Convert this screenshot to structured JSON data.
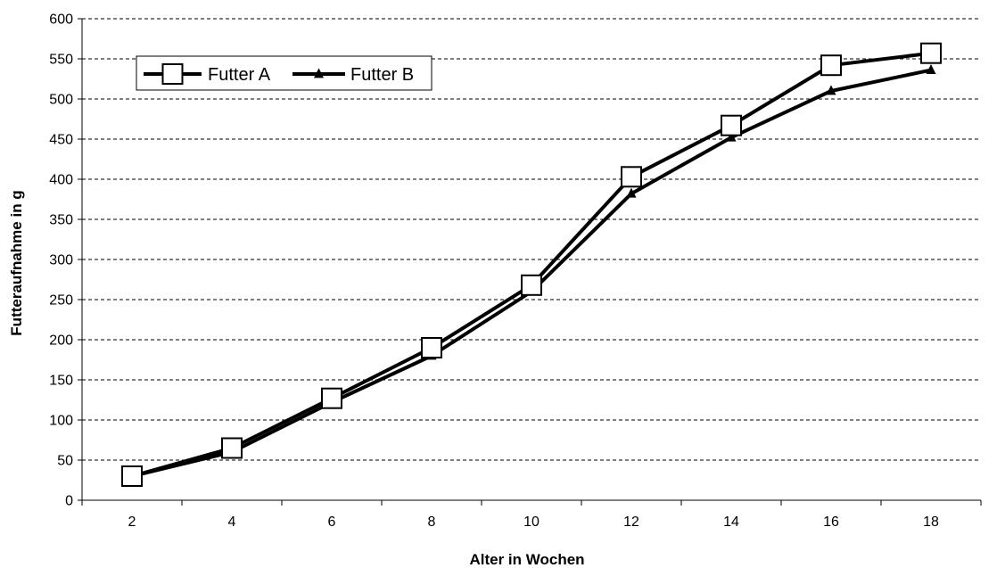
{
  "chart_data": {
    "type": "line",
    "title": "",
    "xlabel": "Alter in Wochen",
    "ylabel": "Futteraufnahme in g",
    "categories": [
      "2",
      "4",
      "6",
      "8",
      "10",
      "12",
      "14",
      "16",
      "18"
    ],
    "ylim": [
      0,
      600
    ],
    "yticks": [
      0,
      50,
      100,
      150,
      200,
      250,
      300,
      350,
      400,
      450,
      500,
      550,
      600
    ],
    "grid": "horizontal dashed",
    "legend_position": "top-left",
    "series": [
      {
        "name": "Futter A",
        "marker": "open-square",
        "color": "#000000",
        "values": [
          30,
          65,
          127,
          190,
          268,
          403,
          467,
          542,
          557
        ]
      },
      {
        "name": "Futter B",
        "marker": "filled-triangle",
        "color": "#000000",
        "values": [
          30,
          60,
          122,
          180,
          260,
          382,
          452,
          510,
          536
        ]
      }
    ]
  }
}
